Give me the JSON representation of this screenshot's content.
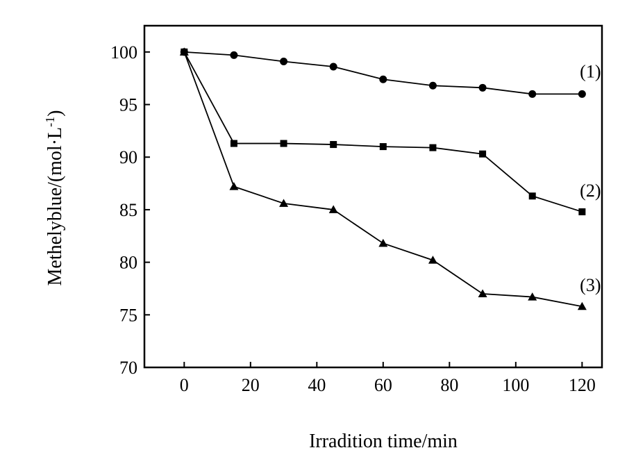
{
  "chart_data": {
    "type": "line",
    "xlabel": "Irradition time/min",
    "ylabel": "Methelyblue/(mol·L",
    "ylabel_sup": "-1",
    "ylabel_tail": ")",
    "xlim": [
      -12,
      126
    ],
    "ylim": [
      70,
      102.5
    ],
    "x_ticks": [
      0,
      20,
      40,
      60,
      80,
      100,
      120
    ],
    "y_ticks": [
      70,
      75,
      80,
      85,
      90,
      95,
      100
    ],
    "x_tick_labels": [
      "0",
      "20",
      "40",
      "60",
      "80",
      "100",
      "120"
    ],
    "y_tick_labels": [
      "70",
      "75",
      "80",
      "85",
      "90",
      "95",
      "100"
    ],
    "x": [
      0,
      15,
      30,
      45,
      60,
      75,
      90,
      105,
      120
    ],
    "series": [
      {
        "label": "(1)",
        "marker": "circle",
        "values": [
          100,
          99.7,
          99.1,
          98.6,
          97.4,
          96.8,
          96.6,
          96.0,
          96.0
        ]
      },
      {
        "label": "(2)",
        "marker": "square",
        "values": [
          100,
          91.3,
          91.3,
          91.2,
          91.0,
          90.9,
          90.3,
          86.3,
          84.8
        ]
      },
      {
        "label": "(3)",
        "marker": "triangle",
        "values": [
          100,
          87.2,
          85.6,
          85.0,
          81.8,
          80.2,
          77.0,
          76.7,
          75.8
        ]
      }
    ],
    "grid": false,
    "legend": "inline labels at line ends",
    "line_color": "#000000",
    "background": "#ffffff"
  }
}
